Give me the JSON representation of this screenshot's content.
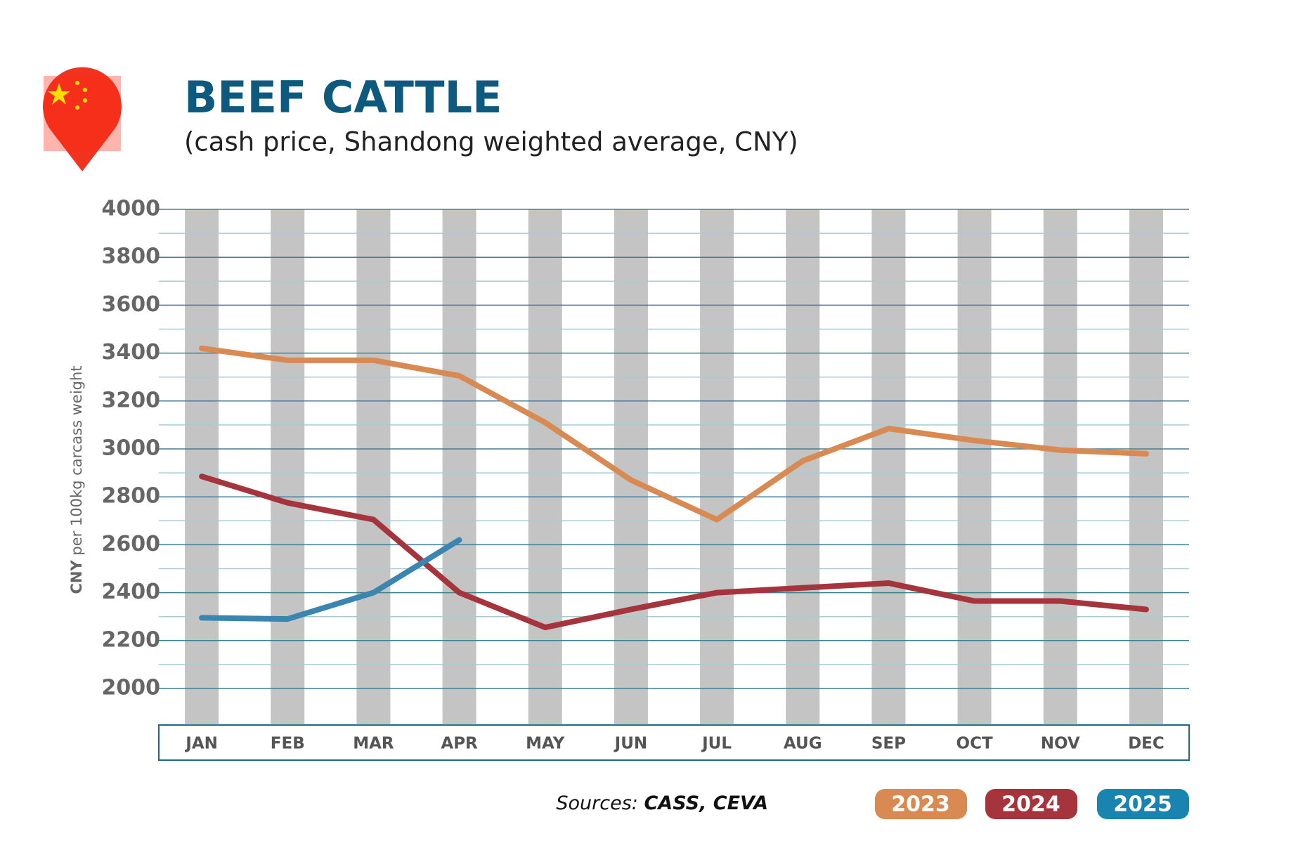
{
  "chart_data": {
    "type": "line",
    "title": "BEEF CATTLE",
    "subtitle": "(cash price, Shandong weighted average, CNY)",
    "y_label_bold": "CNY",
    "y_label": "per 100kg carcass weight",
    "sources_label": "Sources:",
    "sources": "CASS, CEVA",
    "categories": [
      "JAN",
      "FEB",
      "MAR",
      "APR",
      "MAY",
      "JUN",
      "JUL",
      "AUG",
      "SEP",
      "OCT",
      "NOV",
      "DEC"
    ],
    "series": [
      {
        "name": "2023",
        "color": "#d98a52",
        "values": [
          3420,
          3370,
          3370,
          3305,
          3110,
          2870,
          2705,
          2950,
          3085,
          3035,
          2995,
          2980
        ]
      },
      {
        "name": "2024",
        "color": "#a5343d",
        "values": [
          2885,
          2775,
          2705,
          2400,
          2255,
          2330,
          2400,
          2420,
          2440,
          2365,
          2365,
          2330
        ]
      },
      {
        "name": "2025",
        "color": "#3a86b0",
        "values": [
          2295,
          2290,
          2400,
          2620,
          null,
          null,
          null,
          null,
          null,
          null,
          null,
          null
        ]
      }
    ],
    "ylim": [
      1850,
      4000
    ],
    "yticks": [
      2000,
      2200,
      2400,
      2600,
      2800,
      3000,
      3200,
      3400,
      3600,
      3800,
      4000
    ],
    "minor_yticks": [
      2100,
      2300,
      2500,
      2700,
      2900,
      3100,
      3300,
      3500,
      3700,
      3900
    ],
    "grid": true
  }
}
